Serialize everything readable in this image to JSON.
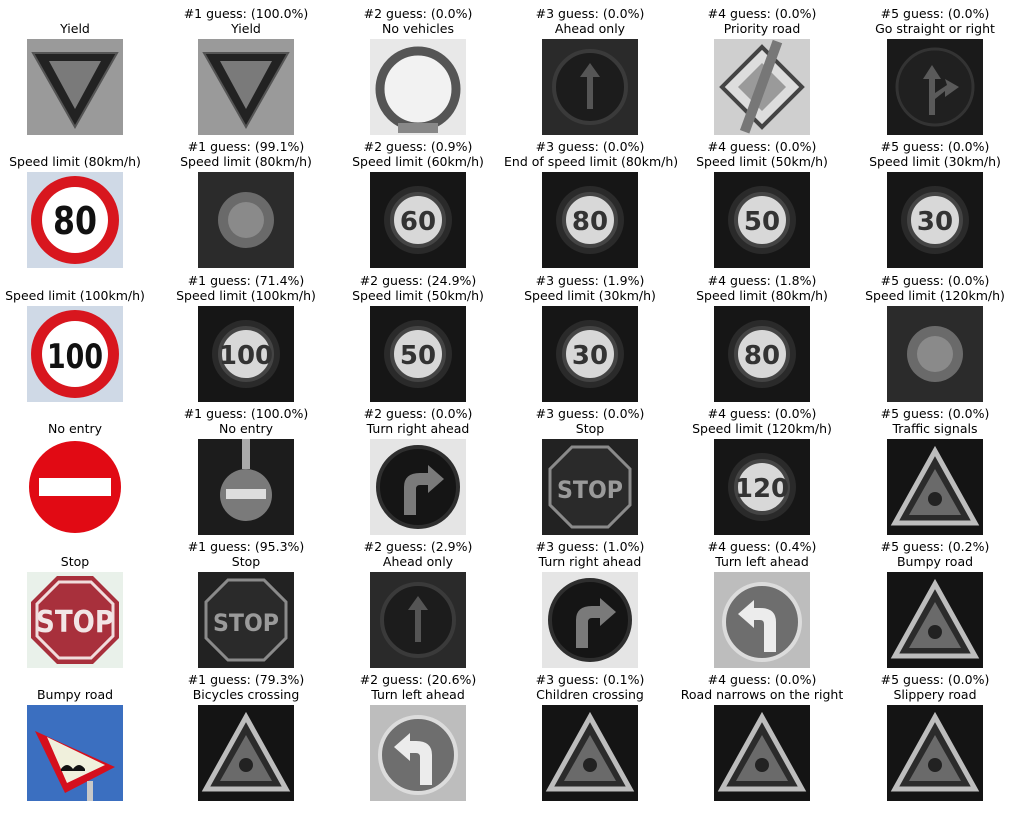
{
  "rows": [
    {
      "input": {
        "label": "Yield",
        "kind": "yield",
        "image": "yield-sign"
      },
      "guesses": [
        {
          "header": "#1 guess: (100.0%)",
          "label": "Yield",
          "kind": "yield"
        },
        {
          "header": "#2 guess: (0.0%)",
          "label": "No vehicles",
          "kind": "circle-blank"
        },
        {
          "header": "#3 guess: (0.0%)",
          "label": "Ahead only",
          "kind": "arrow-up"
        },
        {
          "header": "#4 guess: (0.0%)",
          "label": "Priority road",
          "kind": "priority"
        },
        {
          "header": "#5 guess: (0.0%)",
          "label": "Go straight or right",
          "kind": "straight-right"
        }
      ]
    },
    {
      "input": {
        "label": "Speed limit (80km/h)",
        "kind": "speed",
        "text": "80",
        "image": "speed-limit-80-sign"
      },
      "guesses": [
        {
          "header": "#1 guess: (99.1%)",
          "label": "Speed limit (80km/h)",
          "kind": "speed-blur",
          "text": ""
        },
        {
          "header": "#2 guess: (0.9%)",
          "label": "Speed limit (60km/h)",
          "kind": "speed-gray",
          "text": "60"
        },
        {
          "header": "#3 guess: (0.0%)",
          "label": "End of speed limit (80km/h)",
          "kind": "speed-gray",
          "text": "80"
        },
        {
          "header": "#4 guess: (0.0%)",
          "label": "Speed limit (50km/h)",
          "kind": "speed-gray",
          "text": "50"
        },
        {
          "header": "#5 guess: (0.0%)",
          "label": "Speed limit (30km/h)",
          "kind": "speed-gray",
          "text": "30"
        }
      ]
    },
    {
      "input": {
        "label": "Speed limit (100km/h)",
        "kind": "speed",
        "text": "100",
        "image": "speed-limit-100-sign"
      },
      "guesses": [
        {
          "header": "#1 guess: (71.4%)",
          "label": "Speed limit (100km/h)",
          "kind": "speed-gray",
          "text": "100"
        },
        {
          "header": "#2 guess: (24.9%)",
          "label": "Speed limit (50km/h)",
          "kind": "speed-gray",
          "text": "50"
        },
        {
          "header": "#3 guess: (1.9%)",
          "label": "Speed limit (30km/h)",
          "kind": "speed-gray",
          "text": "30"
        },
        {
          "header": "#4 guess: (1.8%)",
          "label": "Speed limit (80km/h)",
          "kind": "speed-gray",
          "text": "80"
        },
        {
          "header": "#5 guess: (0.0%)",
          "label": "Speed limit (120km/h)",
          "kind": "speed-blur",
          "text": ""
        }
      ]
    },
    {
      "input": {
        "label": "No entry",
        "kind": "noentry",
        "image": "no-entry-sign"
      },
      "guesses": [
        {
          "header": "#1 guess: (100.0%)",
          "label": "No entry",
          "kind": "noentry-gray"
        },
        {
          "header": "#2 guess: (0.0%)",
          "label": "Turn right ahead",
          "kind": "turn-right"
        },
        {
          "header": "#3 guess: (0.0%)",
          "label": "Stop",
          "kind": "stop-gray"
        },
        {
          "header": "#4 guess: (0.0%)",
          "label": "Speed limit (120km/h)",
          "kind": "speed-gray",
          "text": "120"
        },
        {
          "header": "#5 guess: (0.0%)",
          "label": "Traffic signals",
          "kind": "triangle"
        }
      ]
    },
    {
      "input": {
        "label": "Stop",
        "kind": "stop",
        "image": "stop-sign"
      },
      "guesses": [
        {
          "header": "#1 guess: (95.3%)",
          "label": "Stop",
          "kind": "stop-gray"
        },
        {
          "header": "#2 guess: (2.9%)",
          "label": "Ahead only",
          "kind": "arrow-up"
        },
        {
          "header": "#3 guess: (1.0%)",
          "label": "Turn right ahead",
          "kind": "turn-right"
        },
        {
          "header": "#4 guess: (0.4%)",
          "label": "Turn left ahead",
          "kind": "turn-left"
        },
        {
          "header": "#5 guess: (0.2%)",
          "label": "Bumpy road",
          "kind": "triangle"
        }
      ]
    },
    {
      "input": {
        "label": "Bumpy road",
        "kind": "bumpy",
        "image": "bumpy-road-sign"
      },
      "guesses": [
        {
          "header": "#1 guess: (79.3%)",
          "label": "Bicycles crossing",
          "kind": "triangle"
        },
        {
          "header": "#2 guess: (20.6%)",
          "label": "Turn left ahead",
          "kind": "turn-left"
        },
        {
          "header": "#3 guess: (0.1%)",
          "label": "Children crossing",
          "kind": "triangle"
        },
        {
          "header": "#4 guess: (0.0%)",
          "label": "Road narrows on the right",
          "kind": "triangle"
        },
        {
          "header": "#5 guess: (0.0%)",
          "label": "Slippery road",
          "kind": "triangle"
        }
      ]
    }
  ]
}
